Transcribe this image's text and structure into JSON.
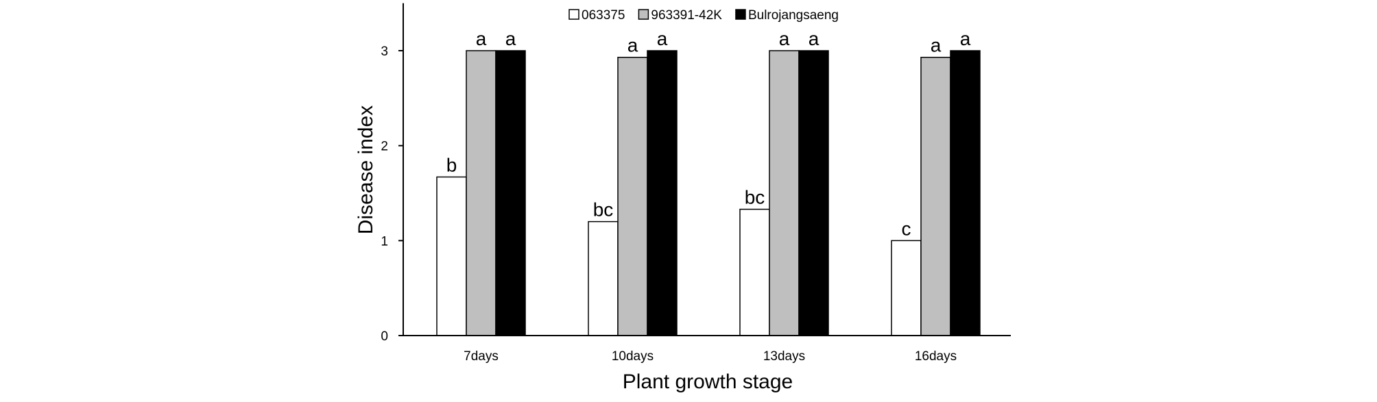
{
  "chart_data": {
    "type": "bar",
    "title": "",
    "xlabel": "Plant growth stage",
    "ylabel": "Disease index",
    "ylim": [
      0,
      3.5
    ],
    "yticks": [
      0,
      1,
      2,
      3
    ],
    "grid": false,
    "legend_position": "top-center",
    "categories": [
      "7days",
      "10days",
      "13days",
      "16days"
    ],
    "series": [
      {
        "name": "063375",
        "color": "#ffffff",
        "values": [
          1.67,
          1.2,
          1.33,
          1.0
        ],
        "labels": [
          "b",
          "bc",
          "bc",
          "c"
        ]
      },
      {
        "name": "963391-42K",
        "color": "#bfbfbf",
        "values": [
          3.0,
          2.93,
          3.0,
          2.93
        ],
        "labels": [
          "a",
          "a",
          "a",
          "a"
        ]
      },
      {
        "name": "Bulrojangsaeng",
        "color": "#000000",
        "values": [
          3.0,
          3.0,
          3.0,
          3.0
        ],
        "labels": [
          "a",
          "a",
          "a",
          "a"
        ]
      }
    ]
  }
}
